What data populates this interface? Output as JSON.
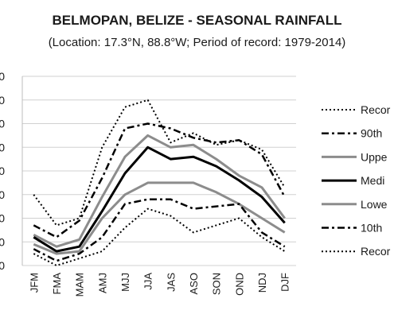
{
  "chart_data": {
    "type": "line",
    "title": "BELMOPAN, BELIZE - SEASONAL RAINFALL",
    "subtitle": "(Location: 17.3°N, 88.8°W; Period of record: 1979-2014)",
    "xlabel": "",
    "ylabel": "",
    "ylim": [
      0,
      8
    ],
    "y_ticks": [
      0,
      1,
      2,
      3,
      4,
      5,
      6,
      7,
      8
    ],
    "y_tick_labels": [
      "0",
      "0",
      "0",
      "0",
      "0",
      "0",
      "0",
      "0",
      "0"
    ],
    "grid": true,
    "legend_position": "right",
    "categories": [
      "JFM",
      "FMA",
      "MAM",
      "AMJ",
      "MJJ",
      "JJA",
      "JAS",
      "ASO",
      "SON",
      "OND",
      "NDJ",
      "DJF"
    ],
    "series": [
      {
        "name": "Recor",
        "style": "dotted",
        "color": "#000000",
        "width": 2,
        "values": [
          3.0,
          1.7,
          2.0,
          5.0,
          6.7,
          7.0,
          5.2,
          5.6,
          5.1,
          5.3,
          4.9,
          3.3
        ]
      },
      {
        "name": "90th",
        "style": "dashdot",
        "color": "#000000",
        "width": 2.5,
        "values": [
          1.7,
          1.2,
          1.9,
          3.7,
          5.8,
          6.0,
          5.8,
          5.4,
          5.2,
          5.3,
          4.7,
          2.9
        ]
      },
      {
        "name": "Uppe",
        "style": "solid",
        "color": "#8c8c8c",
        "width": 3,
        "values": [
          1.3,
          0.8,
          1.1,
          2.9,
          4.6,
          5.5,
          5.0,
          5.1,
          4.5,
          3.8,
          3.3,
          2.0
        ]
      },
      {
        "name": "Medi",
        "style": "solid",
        "color": "#000000",
        "width": 3,
        "values": [
          1.2,
          0.6,
          0.8,
          2.3,
          3.9,
          5.0,
          4.5,
          4.6,
          4.2,
          3.6,
          2.9,
          1.8
        ]
      },
      {
        "name": "Lowe",
        "style": "solid",
        "color": "#8c8c8c",
        "width": 3,
        "values": [
          0.9,
          0.5,
          0.6,
          2.0,
          3.0,
          3.5,
          3.5,
          3.5,
          3.1,
          2.6,
          2.0,
          1.4
        ]
      },
      {
        "name": "10th",
        "style": "dashdot",
        "color": "#000000",
        "width": 2.5,
        "values": [
          0.7,
          0.2,
          0.5,
          1.2,
          2.6,
          2.8,
          2.8,
          2.4,
          2.5,
          2.6,
          1.4,
          0.8
        ]
      },
      {
        "name": "Recor",
        "style": "dotted",
        "color": "#000000",
        "width": 2,
        "values": [
          0.5,
          0.0,
          0.3,
          0.6,
          1.6,
          2.4,
          2.1,
          1.4,
          1.7,
          2.0,
          1.2,
          0.6
        ]
      }
    ]
  }
}
